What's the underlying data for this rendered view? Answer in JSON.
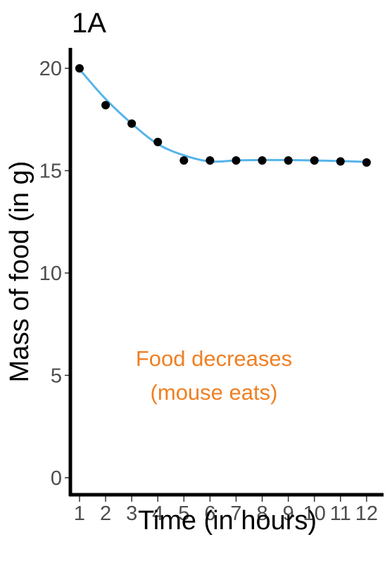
{
  "chart_data": {
    "type": "scatter",
    "title": "1A",
    "xlabel": "Time (in hours)",
    "ylabel": "Mass of food (in g)",
    "x": [
      1,
      2,
      3,
      4,
      5,
      6,
      7,
      8,
      9,
      10,
      11,
      12
    ],
    "y": [
      20.0,
      18.2,
      17.3,
      16.4,
      15.5,
      15.5,
      15.5,
      15.5,
      15.5,
      15.5,
      15.45,
      15.4
    ],
    "x_ticks": [
      "1",
      "2",
      "3",
      "4",
      "5",
      "6",
      "7",
      "8",
      "9",
      "10",
      "11",
      "12"
    ],
    "y_ticks": [
      "0",
      "5",
      "10",
      "15",
      "20"
    ],
    "xlim": [
      0.65,
      12.65
    ],
    "ylim": [
      -0.9,
      21
    ],
    "grid": false,
    "trend_line": {
      "type": "smoothed",
      "color": "#56B4E9",
      "x": [
        1,
        2,
        3,
        4,
        5,
        6,
        7,
        8,
        9,
        10,
        11,
        12
      ],
      "y": [
        19.95,
        18.5,
        17.3,
        16.3,
        15.75,
        15.45,
        15.5,
        15.52,
        15.52,
        15.5,
        15.47,
        15.43
      ]
    },
    "point_color": "#000000",
    "annotation": {
      "lines": [
        "Food decreases",
        "(mouse eats)"
      ],
      "color": "#F07F22"
    }
  }
}
